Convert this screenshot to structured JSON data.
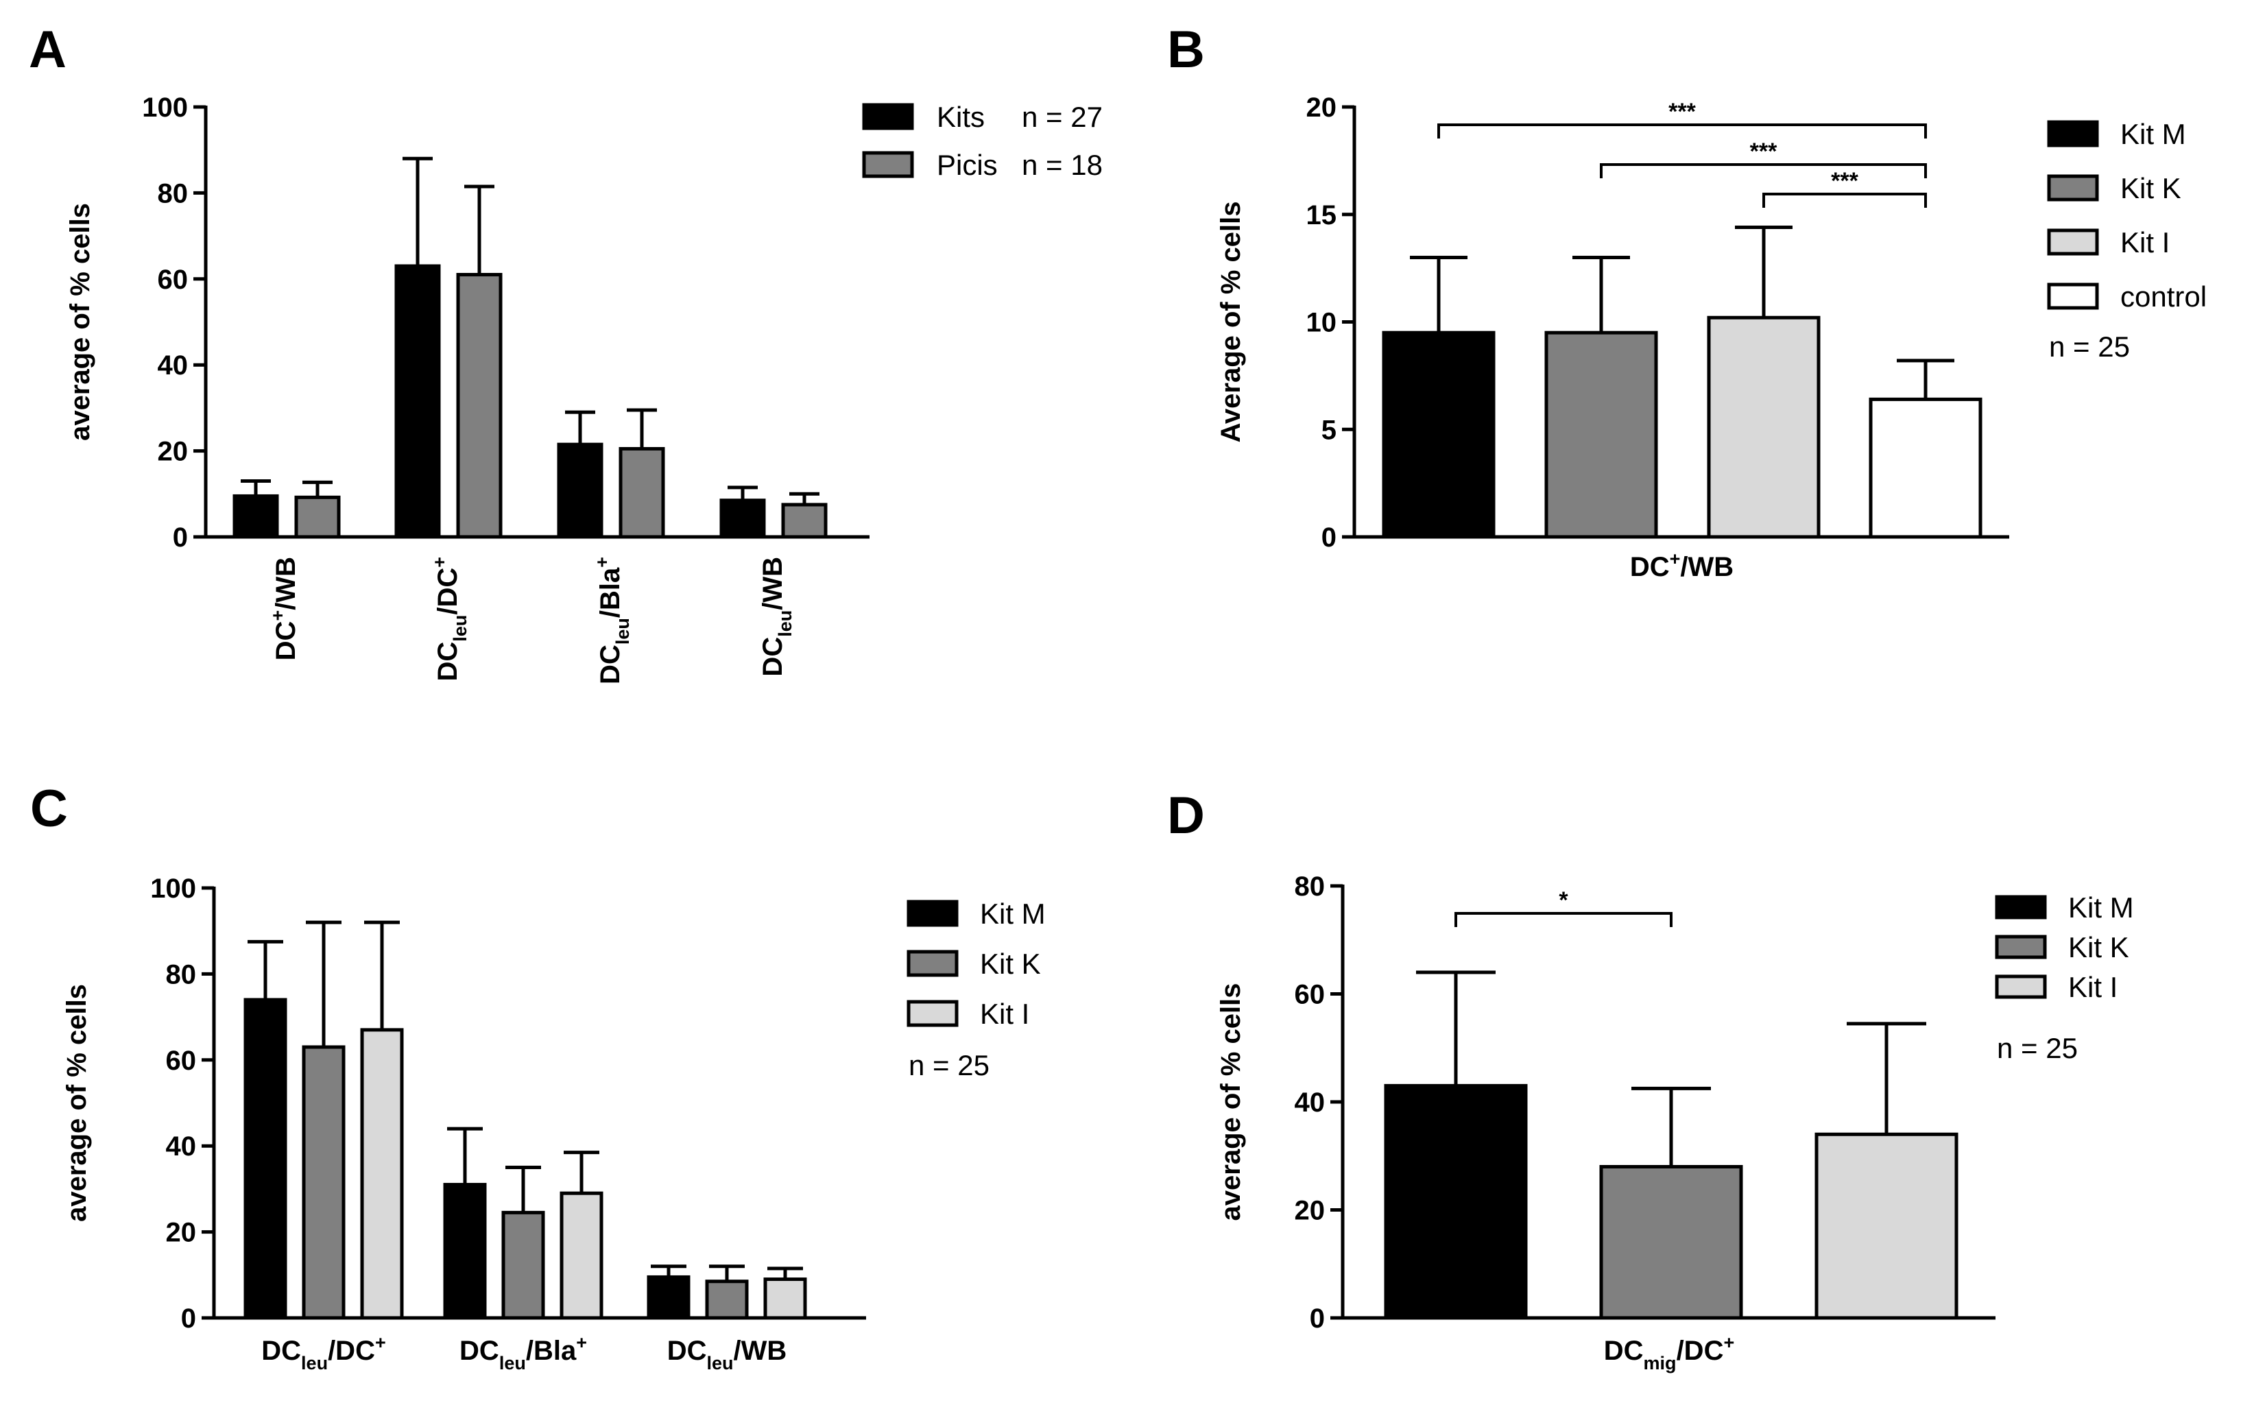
{
  "chart_data": [
    {
      "panel": "A",
      "type": "bar",
      "ylabel": "average of % cells",
      "ylim": [
        0,
        100
      ],
      "yticks": [
        0,
        20,
        40,
        60,
        80,
        100
      ],
      "categories": [
        {
          "main": "DC",
          "sub": "",
          "sup": "+",
          "rest": "/WB",
          "rest_sup": ""
        },
        {
          "main": "DC",
          "sub": "leu",
          "sup": "",
          "rest": "/DC",
          "rest_sup": "+"
        },
        {
          "main": "DC",
          "sub": "leu",
          "sup": "",
          "rest": "/Bla",
          "rest_sup": "+"
        },
        {
          "main": "DC",
          "sub": "leu",
          "sup": "",
          "rest": "/WB",
          "rest_sup": ""
        }
      ],
      "series": [
        {
          "name": "Kits",
          "n_label": "n = 27",
          "color": "#000000",
          "values": [
            9.5,
            63,
            21.5,
            8.5
          ],
          "errors": [
            3.5,
            25,
            7.5,
            3
          ]
        },
        {
          "name": "Picis",
          "n_label": "n = 18",
          "color": "#808080",
          "values": [
            9.2,
            61,
            20.5,
            7.5
          ],
          "errors": [
            3.5,
            20.5,
            9,
            2.5
          ]
        }
      ],
      "significance": []
    },
    {
      "panel": "B",
      "type": "bar",
      "ylabel": "Average of % cells",
      "ylim": [
        0,
        20
      ],
      "yticks": [
        0,
        5,
        10,
        15,
        20
      ],
      "xlabel": {
        "main": "DC",
        "sub": "",
        "sup": "+",
        "rest": "/WB",
        "rest_sup": ""
      },
      "series": [
        {
          "name": "Kit M",
          "color": "#000000",
          "value": 9.5,
          "error": 3.5
        },
        {
          "name": "Kit K",
          "color": "#808080",
          "value": 9.5,
          "error": 3.5
        },
        {
          "name": "Kit I",
          "color": "#d9d9d9",
          "value": 10.2,
          "error": 4.2
        },
        {
          "name": "control",
          "color": "#ffffff",
          "value": 6.4,
          "error": 1.8
        }
      ],
      "n_label": "n = 25",
      "significance": [
        {
          "from": 0,
          "to": 3,
          "label": "***"
        },
        {
          "from": 1,
          "to": 3,
          "label": "***"
        },
        {
          "from": 2,
          "to": 3,
          "label": "***"
        }
      ]
    },
    {
      "panel": "C",
      "type": "bar",
      "ylabel": "average of % cells",
      "ylim": [
        0,
        100
      ],
      "yticks": [
        0,
        20,
        40,
        60,
        80,
        100
      ],
      "categories": [
        {
          "main": "DC",
          "sub": "leu",
          "sup": "",
          "rest": "/DC",
          "rest_sup": "+"
        },
        {
          "main": "DC",
          "sub": "leu",
          "sup": "",
          "rest": "/Bla",
          "rest_sup": "+"
        },
        {
          "main": "DC",
          "sub": "leu",
          "sup": "",
          "rest": "/WB",
          "rest_sup": ""
        }
      ],
      "series": [
        {
          "name": "Kit M",
          "color": "#000000",
          "values": [
            74,
            31,
            9.5
          ],
          "errors": [
            13.5,
            13,
            2.5
          ]
        },
        {
          "name": "Kit K",
          "color": "#808080",
          "values": [
            63,
            24.5,
            8.5
          ],
          "errors": [
            29,
            10.5,
            3.5
          ]
        },
        {
          "name": "Kit I",
          "color": "#d9d9d9",
          "values": [
            67,
            29,
            9
          ],
          "errors": [
            25,
            9.5,
            2.5
          ]
        }
      ],
      "n_label": "n = 25",
      "significance": []
    },
    {
      "panel": "D",
      "type": "bar",
      "ylabel": "average of % cells",
      "ylim": [
        0,
        80
      ],
      "yticks": [
        0,
        20,
        40,
        60,
        80
      ],
      "xlabel": {
        "main": "DC",
        "sub": "mig",
        "sup": "",
        "rest": "/DC",
        "rest_sup": "+"
      },
      "series": [
        {
          "name": "Kit M",
          "color": "#000000",
          "value": 43,
          "error": 21
        },
        {
          "name": "Kit K",
          "color": "#808080",
          "value": 28,
          "error": 14.5
        },
        {
          "name": "Kit I",
          "color": "#d9d9d9",
          "value": 34,
          "error": 20.5
        }
      ],
      "n_label": "n = 25",
      "significance": [
        {
          "from": 0,
          "to": 1,
          "label": "*"
        }
      ]
    }
  ]
}
